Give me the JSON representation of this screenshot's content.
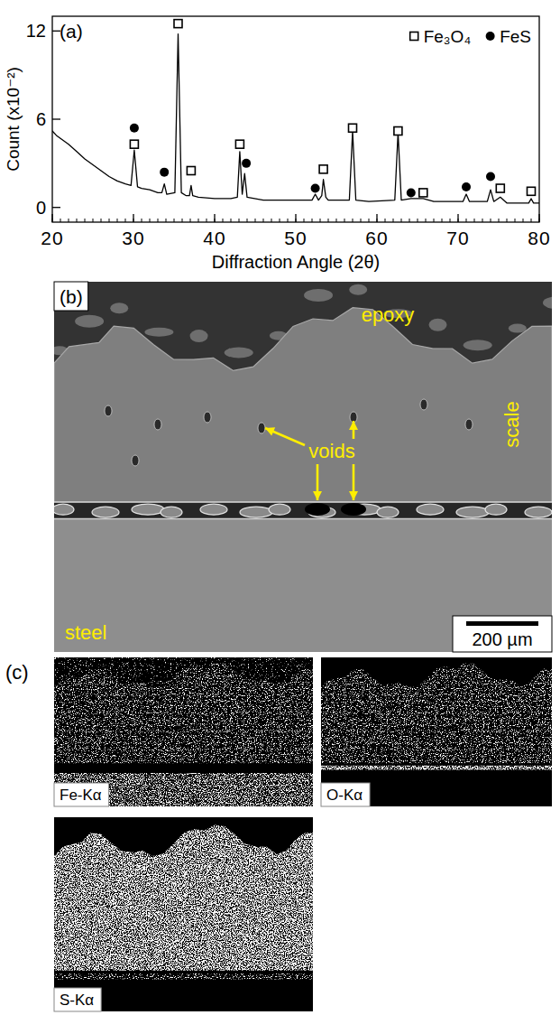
{
  "chart_data": {
    "type": "line",
    "title": "(a)",
    "xlabel": "Diffraction Angle (2θ)",
    "ylabel": "Count (x10⁻²)",
    "xlim": [
      20,
      80
    ],
    "ylim": [
      -1,
      13
    ],
    "xticks": [
      20,
      30,
      40,
      50,
      60,
      70,
      80
    ],
    "yticks": [
      0,
      6,
      12
    ],
    "legend": "top-right",
    "series": [
      {
        "type": "line",
        "color": "#000000",
        "x": [
          20,
          20.5,
          21,
          22,
          23,
          24,
          25,
          26,
          27,
          28,
          29,
          29.7,
          30.1,
          30.5,
          31,
          32,
          33,
          33.5,
          33.8,
          34.1,
          35.1,
          35.5,
          35.9,
          36.5,
          36.9,
          37.1,
          37.3,
          38,
          40,
          42,
          42.8,
          43.1,
          43.4,
          43.7,
          44,
          46,
          48,
          50,
          52,
          52.4,
          52.8,
          53.2,
          53.4,
          53.7,
          54,
          56.6,
          57,
          57.4,
          59,
          62.2,
          62.6,
          63,
          64.2,
          65.7,
          67,
          70.6,
          71,
          71.4,
          73.6,
          74,
          74.4,
          75.2,
          76,
          78.7,
          79,
          79.3,
          80
        ],
        "values": [
          5.2,
          4.9,
          4.7,
          4.3,
          3.8,
          3.3,
          2.9,
          2.5,
          2.1,
          1.8,
          1.6,
          1.5,
          3.9,
          1.4,
          1.3,
          1.2,
          1.0,
          1.0,
          1.6,
          0.9,
          1.0,
          11.8,
          1.0,
          0.8,
          0.8,
          1.5,
          0.8,
          0.7,
          0.6,
          0.6,
          0.7,
          3.8,
          0.9,
          2.3,
          0.7,
          0.5,
          0.5,
          0.5,
          0.5,
          0.9,
          0.5,
          0.8,
          1.9,
          0.7,
          0.5,
          0.5,
          5.2,
          0.5,
          0.4,
          0.5,
          5.1,
          0.5,
          0.6,
          0.6,
          0.4,
          0.4,
          0.9,
          0.4,
          0.4,
          1.2,
          0.4,
          0.7,
          0.3,
          0.3,
          0.6,
          0.3,
          0.3
        ]
      },
      {
        "name": "Fe₃O₄",
        "type": "scatter",
        "marker": "square",
        "color": "#000000",
        "x": [
          30.1,
          35.5,
          37.1,
          43.1,
          53.4,
          57.0,
          62.6,
          65.7,
          75.2,
          79.0
        ],
        "values": [
          4.3,
          12.5,
          2.5,
          4.3,
          2.6,
          5.4,
          5.2,
          1.0,
          1.3,
          1.1
        ]
      },
      {
        "name": "FeS",
        "type": "scatter",
        "marker": "circle",
        "color": "#000000",
        "x": [
          30.1,
          33.8,
          43.9,
          52.4,
          64.2,
          71.0,
          74.0
        ],
        "values": [
          5.4,
          2.4,
          3.0,
          1.3,
          1.0,
          1.4,
          2.1
        ]
      }
    ]
  },
  "sem_image": {
    "panel_label": "(b)",
    "labels": [
      "epoxy",
      "scale",
      "voids",
      "steel"
    ],
    "scale_bar": "200 µm"
  },
  "eds_maps": {
    "panel_label": "(c)",
    "maps": [
      "Fe-Kα",
      "O-Kα",
      "S-Kα"
    ]
  }
}
